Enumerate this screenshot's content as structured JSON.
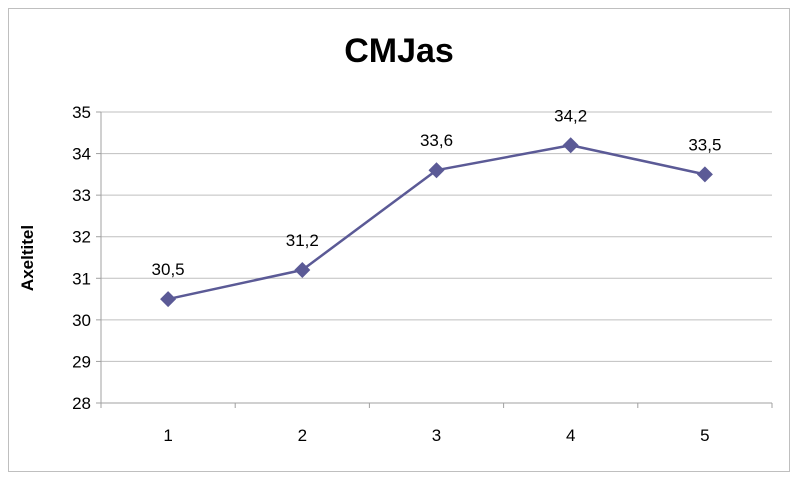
{
  "chart_data": {
    "type": "line",
    "title": "CMJas",
    "xlabel": "",
    "ylabel": "Axeltitel",
    "categories": [
      "1",
      "2",
      "3",
      "4",
      "5"
    ],
    "series": [
      {
        "values": [
          30.5,
          31.2,
          33.6,
          34.2,
          33.5
        ]
      }
    ],
    "data_labels": [
      "30,5",
      "31,2",
      "33,6",
      "34,2",
      "33,5"
    ],
    "y_ticks": [
      "28",
      "29",
      "30",
      "31",
      "32",
      "33",
      "34",
      "35"
    ],
    "ylim": [
      28,
      35
    ],
    "grid": true,
    "legend": "none",
    "colors": {
      "series": "#5b5a96",
      "grid": "#bfbfbf",
      "axis": "#a0a0a0"
    }
  }
}
